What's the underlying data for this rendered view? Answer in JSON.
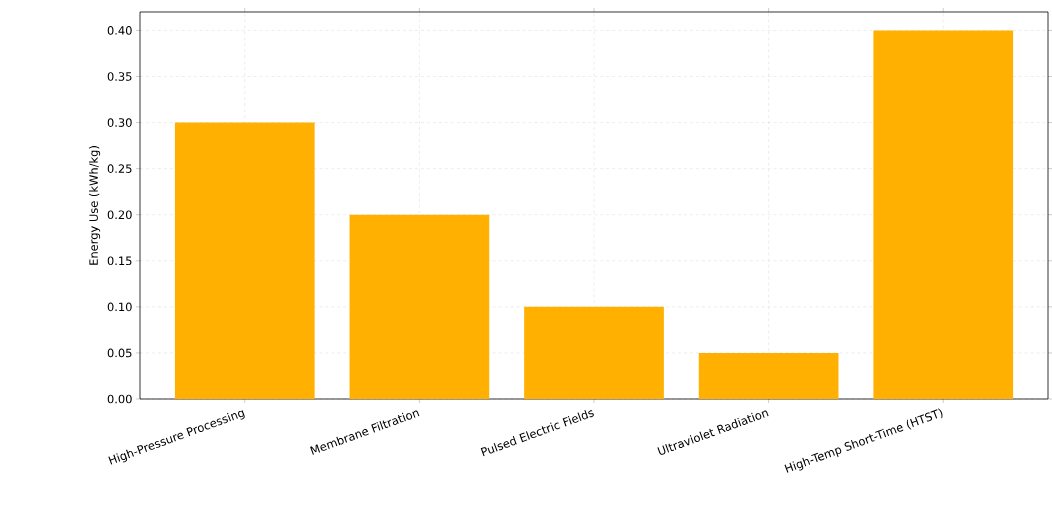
{
  "chart_data": {
    "type": "bar",
    "ylabel": "Energy Use (kWh/kg)",
    "categories": [
      "High-Pressure Processing",
      "Membrane Filtration",
      "Pulsed Electric Fields",
      "Ultraviolet Radiation",
      "High-Temp Short-Time (HTST)"
    ],
    "values": [
      0.3,
      0.2,
      0.1,
      0.05,
      0.4
    ],
    "color": "#ffb000",
    "ylim": [
      0,
      0.42
    ],
    "yticks": [
      {
        "value": 0,
        "label": "0.00"
      },
      {
        "value": 0.05,
        "label": "0.05"
      },
      {
        "value": 0.1,
        "label": "0.10"
      },
      {
        "value": 0.15,
        "label": "0.15"
      },
      {
        "value": 0.2,
        "label": "0.20"
      },
      {
        "value": 0.25,
        "label": "0.25"
      },
      {
        "value": 0.3,
        "label": "0.30"
      },
      {
        "value": 0.35,
        "label": "0.35"
      },
      {
        "value": 0.4,
        "label": "0.40"
      }
    ],
    "grid": true
  }
}
